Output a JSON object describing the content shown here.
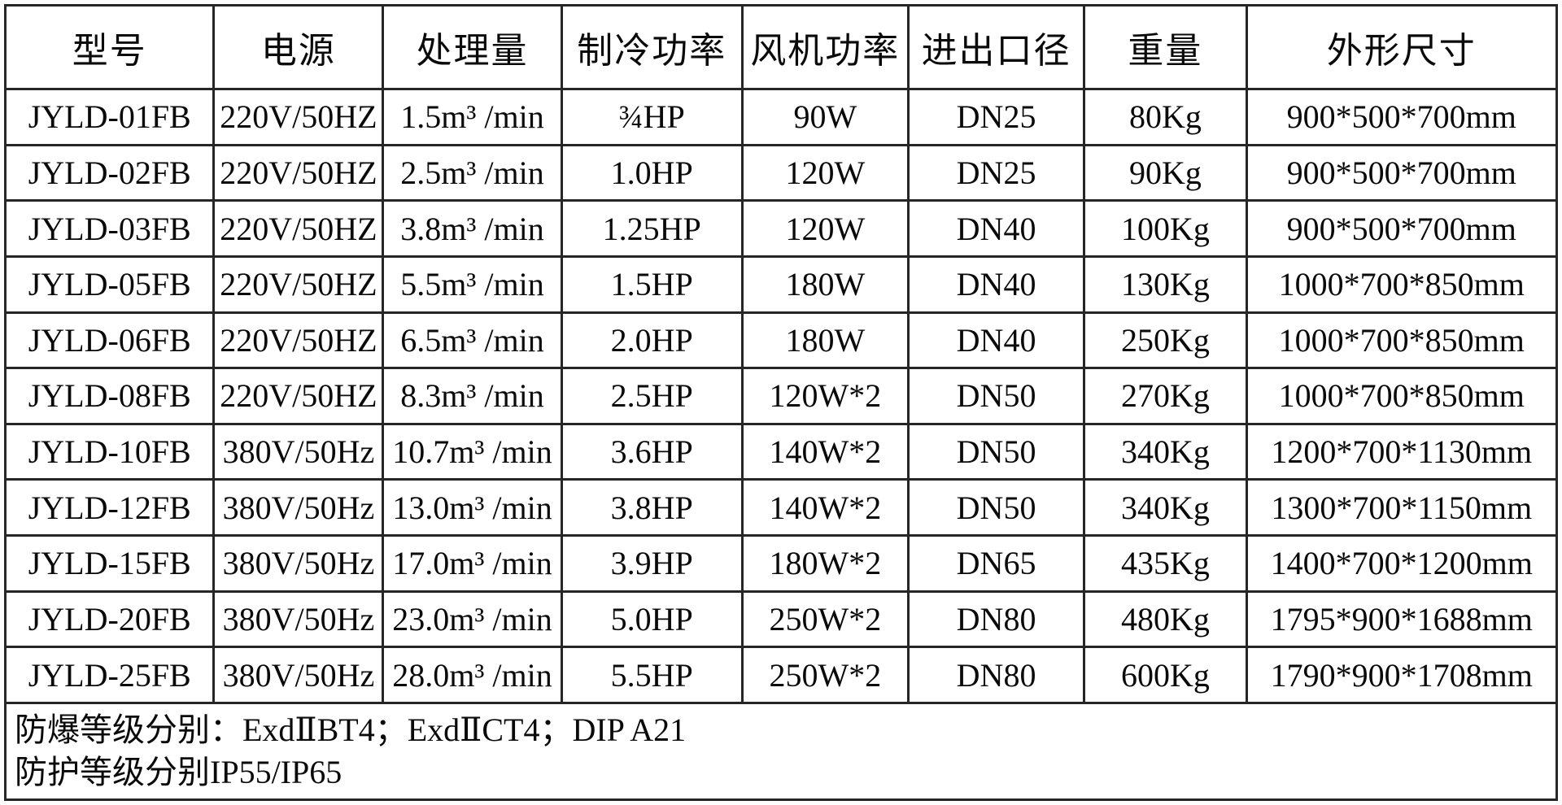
{
  "colors": {
    "background": "#ffffff",
    "border": "#262626",
    "text": "#0a0a0a"
  },
  "table": {
    "headers": [
      "型号",
      "电源",
      "处理量",
      "制冷功率",
      "风机功率",
      "进出口径",
      "重量",
      "外形尺寸"
    ],
    "fields": [
      "model",
      "power-supply",
      "capacity",
      "cooling-power",
      "fan-power",
      "port-diameter",
      "weight",
      "dimensions"
    ],
    "rows": [
      {
        "cells": [
          "JYLD-01FB",
          "220V/50HZ",
          "1.5m³ /min",
          "¾HP",
          "90W",
          "DN25",
          "80Kg",
          "900*500*700mm"
        ]
      },
      {
        "cells": [
          "JYLD-02FB",
          "220V/50HZ",
          "2.5m³ /min",
          "1.0HP",
          "120W",
          "DN25",
          "90Kg",
          "900*500*700mm"
        ]
      },
      {
        "cells": [
          "JYLD-03FB",
          "220V/50HZ",
          "3.8m³ /min",
          "1.25HP",
          "120W",
          "DN40",
          "100Kg",
          "900*500*700mm"
        ]
      },
      {
        "cells": [
          "JYLD-05FB",
          "220V/50HZ",
          "5.5m³ /min",
          "1.5HP",
          "180W",
          "DN40",
          "130Kg",
          "1000*700*850mm"
        ]
      },
      {
        "cells": [
          "JYLD-06FB",
          "220V/50HZ",
          "6.5m³ /min",
          "2.0HP",
          "180W",
          "DN40",
          "250Kg",
          "1000*700*850mm"
        ]
      },
      {
        "cells": [
          "JYLD-08FB",
          "220V/50HZ",
          "8.3m³ /min",
          "2.5HP",
          "120W*2",
          "DN50",
          "270Kg",
          "1000*700*850mm"
        ]
      },
      {
        "cells": [
          "JYLD-10FB",
          "380V/50Hz",
          "10.7m³ /min",
          "3.6HP",
          "140W*2",
          "DN50",
          "340Kg",
          "1200*700*1130mm"
        ]
      },
      {
        "cells": [
          "JYLD-12FB",
          "380V/50Hz",
          "13.0m³ /min",
          "3.8HP",
          "140W*2",
          "DN50",
          "340Kg",
          "1300*700*1150mm"
        ]
      },
      {
        "cells": [
          "JYLD-15FB",
          "380V/50Hz",
          "17.0m³ /min",
          "3.9HP",
          "180W*2",
          "DN65",
          "435Kg",
          "1400*700*1200mm"
        ]
      },
      {
        "cells": [
          "JYLD-20FB",
          "380V/50Hz",
          "23.0m³ /min",
          "5.0HP",
          "250W*2",
          "DN80",
          "480Kg",
          "1795*900*1688mm"
        ]
      },
      {
        "cells": [
          "JYLD-25FB",
          "380V/50Hz",
          "28.0m³ /min",
          "5.5HP",
          "250W*2",
          "DN80",
          "600Kg",
          "1790*900*1708mm"
        ]
      }
    ]
  },
  "footer": {
    "line1": "防爆等级分别：ExdⅡBT4；ExdⅡCT4；DIP A21",
    "line2": "防护等级分别IP55/IP65"
  }
}
